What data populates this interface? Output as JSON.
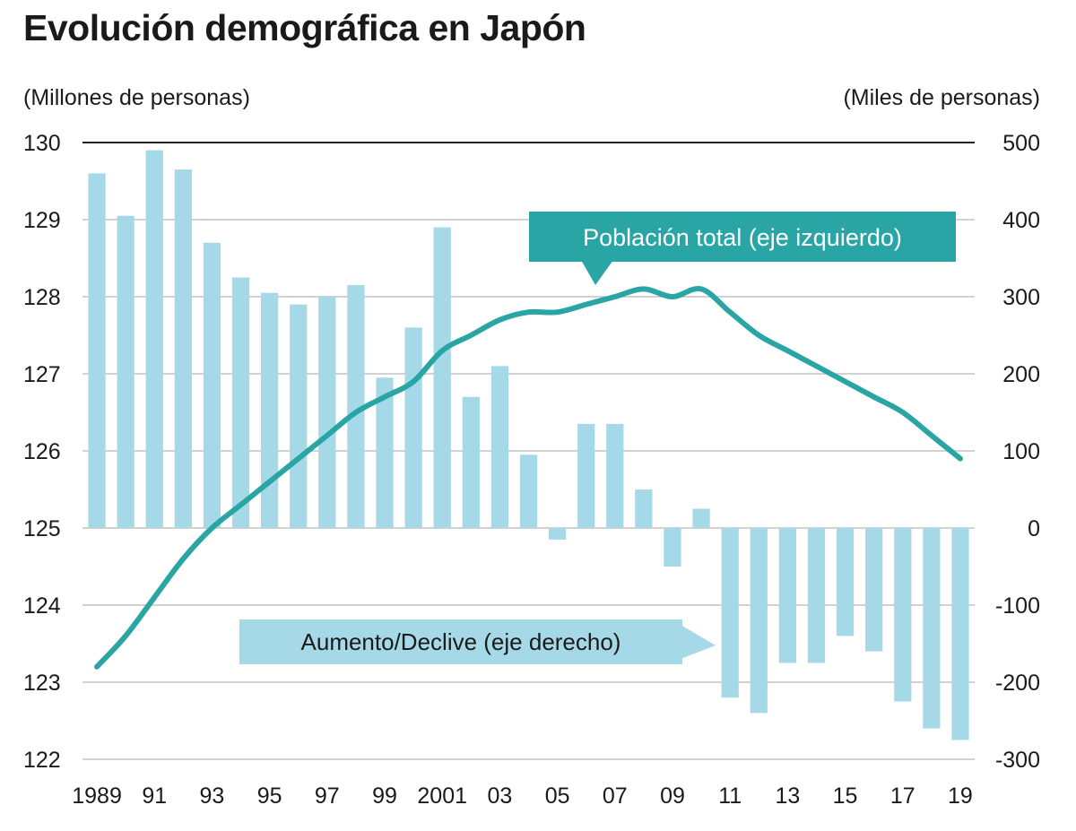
{
  "chart_data": {
    "type": "bar",
    "title": "Evolución demográfica en Japón",
    "ylabel_left": "(Millones de personas)",
    "ylabel_right": "(Miles de personas)",
    "x": [
      1989,
      1990,
      1991,
      1992,
      1993,
      1994,
      1995,
      1996,
      1997,
      1998,
      1999,
      2000,
      2001,
      2002,
      2003,
      2004,
      2005,
      2006,
      2007,
      2008,
      2009,
      2010,
      2011,
      2012,
      2013,
      2014,
      2015,
      2016,
      2017,
      2018,
      2019
    ],
    "x_tick_labels": [
      "1989",
      "",
      "91",
      "",
      "93",
      "",
      "95",
      "",
      "97",
      "",
      "99",
      "",
      "2001",
      "",
      "03",
      "",
      "05",
      "",
      "07",
      "",
      "09",
      "",
      "11",
      "",
      "13",
      "",
      "15",
      "",
      "17",
      "",
      "19"
    ],
    "ylim_left": [
      122,
      130
    ],
    "ylim_right": [
      -300,
      500
    ],
    "y_ticks_left": [
      "130",
      "129",
      "128",
      "127",
      "126",
      "125",
      "124",
      "123",
      "122"
    ],
    "y_ticks_right": [
      "500",
      "400",
      "300",
      "200",
      "100",
      "0",
      "-100",
      "-200",
      "-300"
    ],
    "series": [
      {
        "name": "Aumento/Declive (eje derecho)",
        "type": "bar",
        "axis": "right",
        "color": "#a6d9e8",
        "values": [
          460,
          405,
          490,
          465,
          370,
          325,
          305,
          290,
          300,
          315,
          195,
          260,
          390,
          170,
          210,
          95,
          -15,
          135,
          135,
          50,
          -50,
          25,
          -220,
          -240,
          -175,
          -175,
          -140,
          -160,
          -225,
          -260,
          -275
        ]
      },
      {
        "name": "Población total (eje izquierdo)",
        "type": "line",
        "axis": "left",
        "color": "#2aa5a5",
        "values": [
          123.2,
          123.6,
          124.1,
          124.6,
          125.0,
          125.3,
          125.6,
          125.9,
          126.2,
          126.5,
          126.7,
          126.9,
          127.3,
          127.5,
          127.7,
          127.8,
          127.8,
          127.9,
          128.0,
          128.1,
          128.0,
          128.1,
          127.8,
          127.5,
          127.3,
          127.1,
          126.9,
          126.7,
          126.5,
          126.2,
          125.9
        ]
      }
    ],
    "annotations": {
      "line_label": "Población total (eje izquierdo)",
      "bar_label": "Aumento/Declive (eje derecho)"
    }
  }
}
